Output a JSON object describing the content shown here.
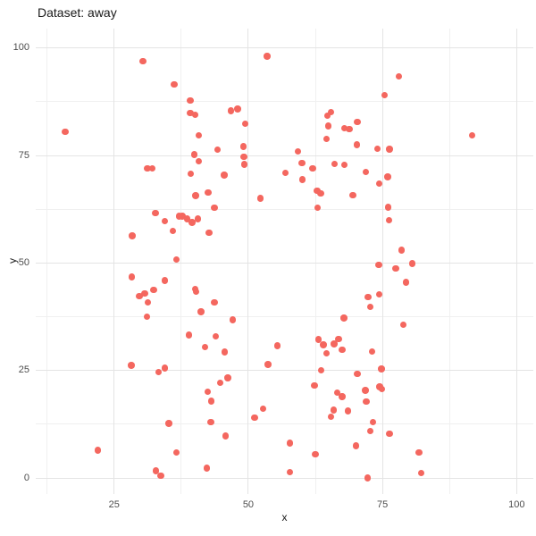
{
  "colors": {
    "background": "#ffffff",
    "point": "#f4675f",
    "grid_major": "#e4e4e4",
    "grid_minor": "#f0f0f0",
    "tick_label": "#4d4d4d",
    "text": "#1a1a1a"
  },
  "chart_data": {
    "type": "scatter",
    "title": "Dataset: away",
    "xlabel": "x",
    "ylabel": "y",
    "xlim": [
      10.4,
      103.1
    ],
    "ylim": [
      -3.7,
      104.5
    ],
    "x_major_ticks": [
      25,
      50,
      75,
      100
    ],
    "x_minor_ticks": [
      12.5,
      37.5,
      62.5,
      87.5
    ],
    "y_major_ticks": [
      0,
      25,
      50,
      75,
      100
    ],
    "y_minor_ticks": [
      12.5,
      37.5,
      62.5,
      87.5
    ],
    "grid": true,
    "legend": false,
    "points": [
      [
        30.4,
        96.9
      ],
      [
        53.5,
        98.1
      ],
      [
        36.2,
        91.5
      ],
      [
        39.2,
        87.8
      ],
      [
        39.2,
        84.9
      ],
      [
        40.1,
        84.5
      ],
      [
        46.8,
        85.4
      ],
      [
        48.0,
        85.8
      ],
      [
        49.4,
        82.4
      ],
      [
        15.9,
        80.5
      ],
      [
        40.8,
        79.7
      ],
      [
        44.3,
        76.3
      ],
      [
        49.1,
        77.1
      ],
      [
        49.2,
        74.7
      ],
      [
        49.3,
        72.9
      ],
      [
        39.9,
        75.2
      ],
      [
        40.8,
        73.7
      ],
      [
        31.2,
        72.0
      ],
      [
        32.1,
        72.0
      ],
      [
        39.3,
        70.8
      ],
      [
        45.5,
        70.4
      ],
      [
        56.9,
        71.0
      ],
      [
        40.2,
        65.7
      ],
      [
        42.5,
        66.4
      ],
      [
        52.3,
        65.0
      ],
      [
        43.7,
        62.9
      ],
      [
        32.7,
        61.6
      ],
      [
        34.5,
        59.7
      ],
      [
        37.1,
        60.9
      ],
      [
        37.7,
        60.9
      ],
      [
        38.6,
        60.3
      ],
      [
        39.5,
        59.4
      ],
      [
        40.6,
        60.3
      ],
      [
        35.9,
        57.5
      ],
      [
        42.7,
        57.1
      ],
      [
        28.4,
        56.3
      ],
      [
        36.6,
        50.8
      ],
      [
        78.1,
        93.4
      ],
      [
        75.4,
        89.0
      ],
      [
        65.4,
        85.1
      ],
      [
        64.7,
        84.2
      ],
      [
        64.9,
        81.9
      ],
      [
        70.3,
        82.8
      ],
      [
        67.9,
        81.3
      ],
      [
        68.8,
        81.1
      ],
      [
        64.6,
        78.9
      ],
      [
        91.7,
        79.7
      ],
      [
        70.2,
        77.5
      ],
      [
        74.1,
        76.6
      ],
      [
        76.3,
        76.5
      ],
      [
        59.2,
        76.0
      ],
      [
        60.0,
        73.2
      ],
      [
        62.0,
        72.0
      ],
      [
        66.1,
        73.0
      ],
      [
        67.9,
        72.8
      ],
      [
        60.1,
        69.4
      ],
      [
        71.9,
        71.2
      ],
      [
        76.0,
        70.0
      ],
      [
        74.4,
        68.5
      ],
      [
        62.8,
        66.8
      ],
      [
        63.5,
        66.2
      ],
      [
        69.5,
        65.8
      ],
      [
        62.9,
        62.9
      ],
      [
        76.1,
        63.0
      ],
      [
        76.2,
        59.9
      ],
      [
        78.6,
        53.0
      ],
      [
        28.3,
        46.8
      ],
      [
        34.4,
        45.9
      ],
      [
        32.4,
        43.7
      ],
      [
        29.7,
        42.3
      ],
      [
        30.7,
        42.9
      ],
      [
        31.3,
        40.8
      ],
      [
        40.1,
        44.0
      ],
      [
        40.3,
        43.3
      ],
      [
        43.7,
        40.9
      ],
      [
        41.2,
        38.7
      ],
      [
        31.1,
        37.5
      ],
      [
        47.1,
        36.8
      ],
      [
        38.9,
        33.3
      ],
      [
        43.9,
        32.9
      ],
      [
        41.9,
        30.4
      ],
      [
        45.6,
        29.3
      ],
      [
        55.4,
        30.8
      ],
      [
        53.7,
        26.4
      ],
      [
        28.2,
        26.2
      ],
      [
        33.3,
        24.6
      ],
      [
        34.5,
        25.6
      ],
      [
        46.2,
        23.3
      ],
      [
        44.8,
        22.1
      ],
      [
        42.4,
        20.1
      ],
      [
        43.1,
        17.9
      ],
      [
        52.8,
        16.1
      ],
      [
        51.2,
        14.0
      ],
      [
        43.0,
        13.0
      ],
      [
        35.2,
        12.7
      ],
      [
        45.8,
        9.8
      ],
      [
        22.0,
        6.5
      ],
      [
        36.6,
        5.9
      ],
      [
        42.3,
        2.3
      ],
      [
        32.8,
        1.7
      ],
      [
        33.7,
        0.5
      ],
      [
        74.3,
        49.6
      ],
      [
        77.5,
        48.7
      ],
      [
        80.5,
        49.9
      ],
      [
        79.4,
        45.5
      ],
      [
        72.3,
        42.1
      ],
      [
        74.4,
        42.7
      ],
      [
        72.7,
        39.8
      ],
      [
        67.8,
        37.2
      ],
      [
        78.9,
        35.7
      ],
      [
        63.1,
        32.2
      ],
      [
        64.0,
        31.0
      ],
      [
        66.8,
        32.3
      ],
      [
        66.0,
        31.2
      ],
      [
        67.5,
        29.8
      ],
      [
        64.6,
        29.0
      ],
      [
        73.1,
        29.4
      ],
      [
        63.6,
        25.1
      ],
      [
        70.3,
        24.2
      ],
      [
        62.3,
        21.5
      ],
      [
        74.8,
        25.4
      ],
      [
        66.6,
        19.9
      ],
      [
        67.5,
        18.9
      ],
      [
        71.8,
        20.4
      ],
      [
        74.5,
        21.2
      ],
      [
        74.9,
        20.7
      ],
      [
        72.0,
        17.8
      ],
      [
        65.9,
        15.8
      ],
      [
        65.4,
        14.3
      ],
      [
        68.6,
        15.6
      ],
      [
        73.2,
        13.0
      ],
      [
        72.7,
        11.0
      ],
      [
        76.3,
        10.3
      ],
      [
        57.8,
        8.1
      ],
      [
        70.1,
        7.5
      ],
      [
        62.5,
        5.6
      ],
      [
        81.8,
        5.9
      ],
      [
        57.8,
        1.4
      ],
      [
        82.2,
        1.2
      ],
      [
        72.2,
        0.0
      ]
    ]
  }
}
